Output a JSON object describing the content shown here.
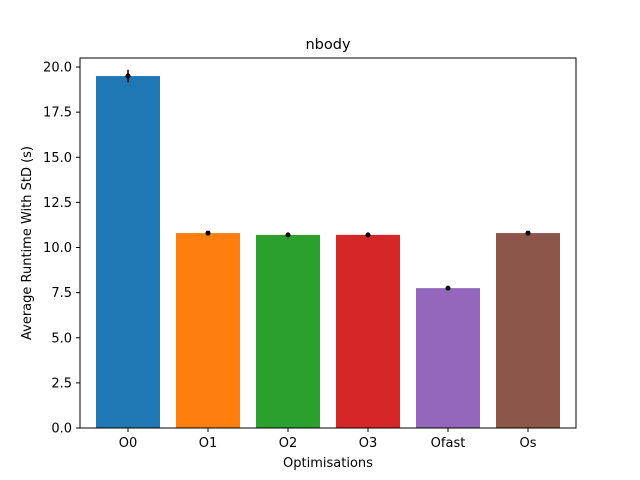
{
  "chart_data": {
    "type": "bar",
    "title": "nbody",
    "xlabel": "Optimisations",
    "ylabel": "Average Runtime With StD (s)",
    "categories": [
      "O0",
      "O1",
      "O2",
      "O3",
      "Ofast",
      "Os"
    ],
    "values": [
      19.5,
      10.8,
      10.7,
      10.7,
      7.75,
      10.8
    ],
    "errors": [
      0.35,
      0.05,
      0.05,
      0.05,
      0.05,
      0.05
    ],
    "colors": [
      "#1f77b4",
      "#ff7f0e",
      "#2ca02c",
      "#d62728",
      "#9467bd",
      "#8c564b"
    ],
    "ylim": [
      0,
      20.5
    ],
    "yticks": [
      "0.0",
      "2.5",
      "5.0",
      "7.5",
      "10.0",
      "12.5",
      "15.0",
      "17.5",
      "20.0"
    ],
    "grid": false,
    "legend": "none"
  }
}
